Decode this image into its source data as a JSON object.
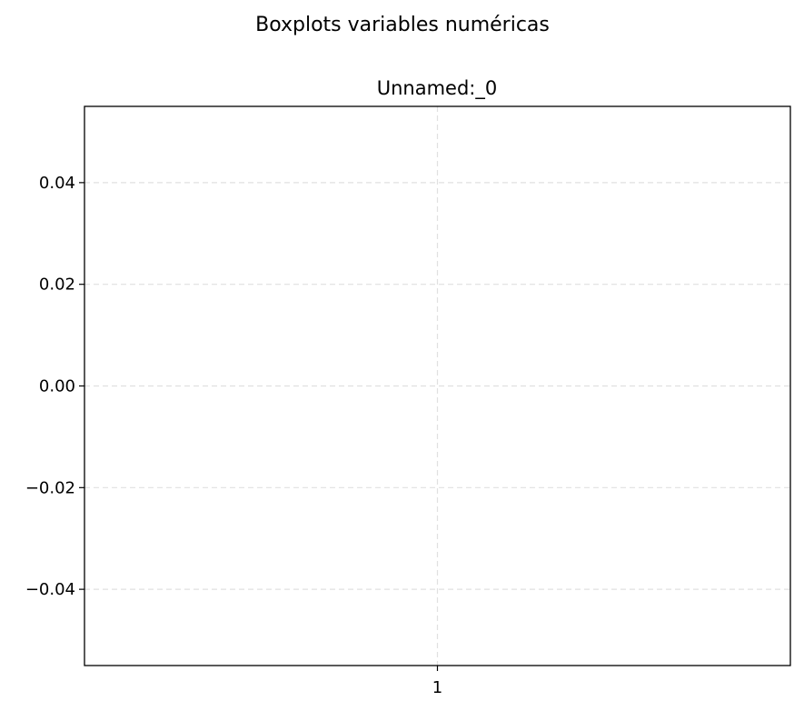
{
  "chart_data": {
    "type": "box",
    "suptitle": "Boxplots variables numéricas",
    "title": "Unnamed:_0",
    "xlabel": "",
    "ylabel": "",
    "categories": [
      "1"
    ],
    "values": [],
    "ylim": [
      -0.055,
      0.055
    ],
    "yticks": [
      0.04,
      0.02,
      0.0,
      -0.02,
      -0.04
    ],
    "ytick_labels": [
      "0.04",
      "0.02",
      "0.00",
      "−0.02",
      "−0.04"
    ],
    "grid": true,
    "grid_style": "dashed",
    "colors": {
      "grid": "#e0e0e0",
      "axes": "#000000",
      "background": "#ffffff"
    }
  }
}
